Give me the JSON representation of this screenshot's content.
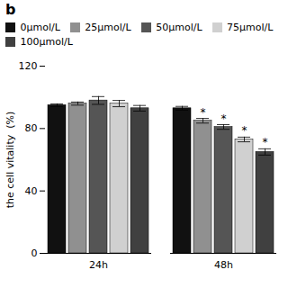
{
  "chart_data": {
    "type": "bar",
    "title": "b",
    "categories": [
      "24h",
      "48h"
    ],
    "series": [
      {
        "name": "0μmol/L",
        "color": "#111111",
        "values": [
          95,
          93
        ],
        "errors": [
          0.8,
          1.2
        ]
      },
      {
        "name": "25μmol/L",
        "color": "#909090",
        "values": [
          96,
          85
        ],
        "errors": [
          1.0,
          1.5
        ]
      },
      {
        "name": "50μmol/L",
        "color": "#555555",
        "values": [
          98,
          81
        ],
        "errors": [
          2.5,
          1.5
        ]
      },
      {
        "name": "75μmol/L",
        "color": "#d0d0d0",
        "values": [
          96,
          73
        ],
        "errors": [
          2.0,
          1.5
        ]
      },
      {
        "name": "100μmol/L",
        "color": "#404040",
        "values": [
          93,
          65
        ],
        "errors": [
          1.8,
          2.0
        ]
      }
    ],
    "annotations": [
      {
        "category": "48h",
        "series": "25μmol/L",
        "text": "*"
      },
      {
        "category": "48h",
        "series": "50μmol/L",
        "text": "*"
      },
      {
        "category": "48h",
        "series": "75μmol/L",
        "text": "*"
      },
      {
        "category": "48h",
        "series": "100μmol/L",
        "text": "*"
      }
    ],
    "ylabel": "the cell vitality  (%)",
    "ylim": [
      0,
      120
    ],
    "yticks": [
      0,
      40,
      80,
      120
    ],
    "grid": false,
    "legend": "top"
  }
}
